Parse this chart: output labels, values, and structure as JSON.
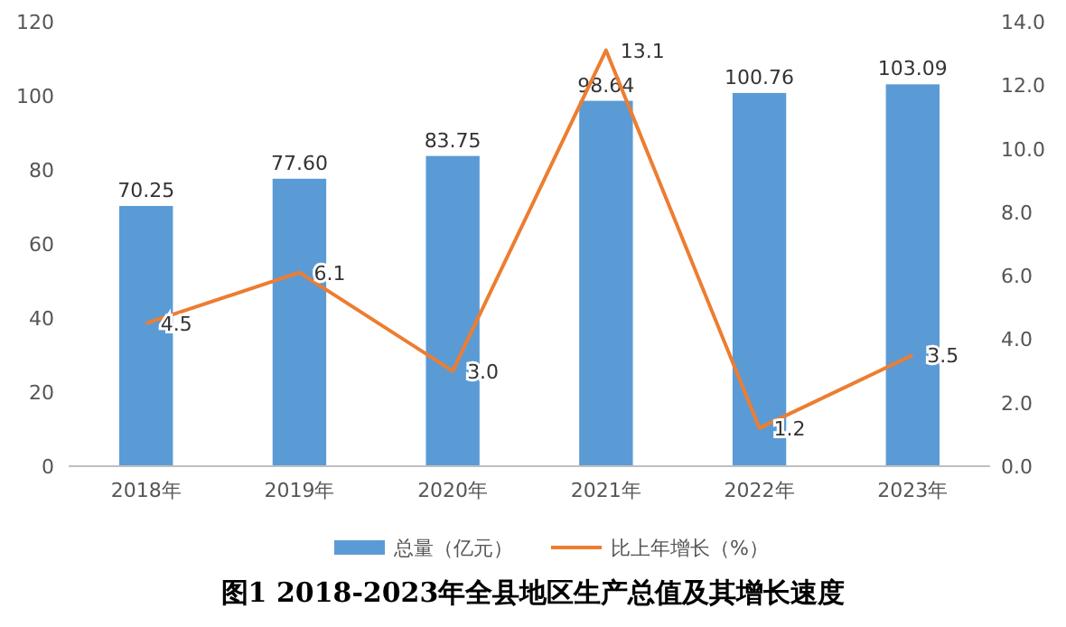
{
  "chart_data": {
    "type": "bar",
    "title": "图1 2018-2023年全县地区生产总值及其增长速度",
    "categories": [
      "2018年",
      "2019年",
      "2020年",
      "2021年",
      "2022年",
      "2023年"
    ],
    "series": [
      {
        "name": "总量（亿元）",
        "color": "#5b9bd5",
        "values": [
          70.25,
          77.6,
          83.75,
          98.64,
          100.76,
          103.09
        ],
        "value_labels": [
          "70.25",
          "77.60",
          "83.75",
          "98.64",
          "100.76",
          "103.09"
        ]
      },
      {
        "name": "比上年增长（%）",
        "type": "line",
        "axis": "y2",
        "color": "#ed7d31",
        "values": [
          4.5,
          6.1,
          3.0,
          13.1,
          1.2,
          3.5
        ],
        "value_labels": [
          "4.5",
          "6.1",
          "3.0",
          "13.1",
          "1.2",
          "3.5"
        ]
      }
    ],
    "ylim": [
      0,
      120
    ],
    "yticks": [
      0,
      20,
      40,
      60,
      80,
      100,
      120
    ],
    "y2lim": [
      0,
      14
    ],
    "y2ticks": [
      {
        "value": 0,
        "label": "0.0"
      },
      {
        "value": 2,
        "label": "2.0"
      },
      {
        "value": 4,
        "label": "4.0"
      },
      {
        "value": 6,
        "label": "6.0"
      },
      {
        "value": 8,
        "label": "8.0"
      },
      {
        "value": 10,
        "label": "10.0"
      },
      {
        "value": 12,
        "label": "12.0"
      },
      {
        "value": 14,
        "label": "14.0"
      }
    ],
    "legend": "bottom",
    "grid": false,
    "marker": "none",
    "line_style": "solid"
  }
}
